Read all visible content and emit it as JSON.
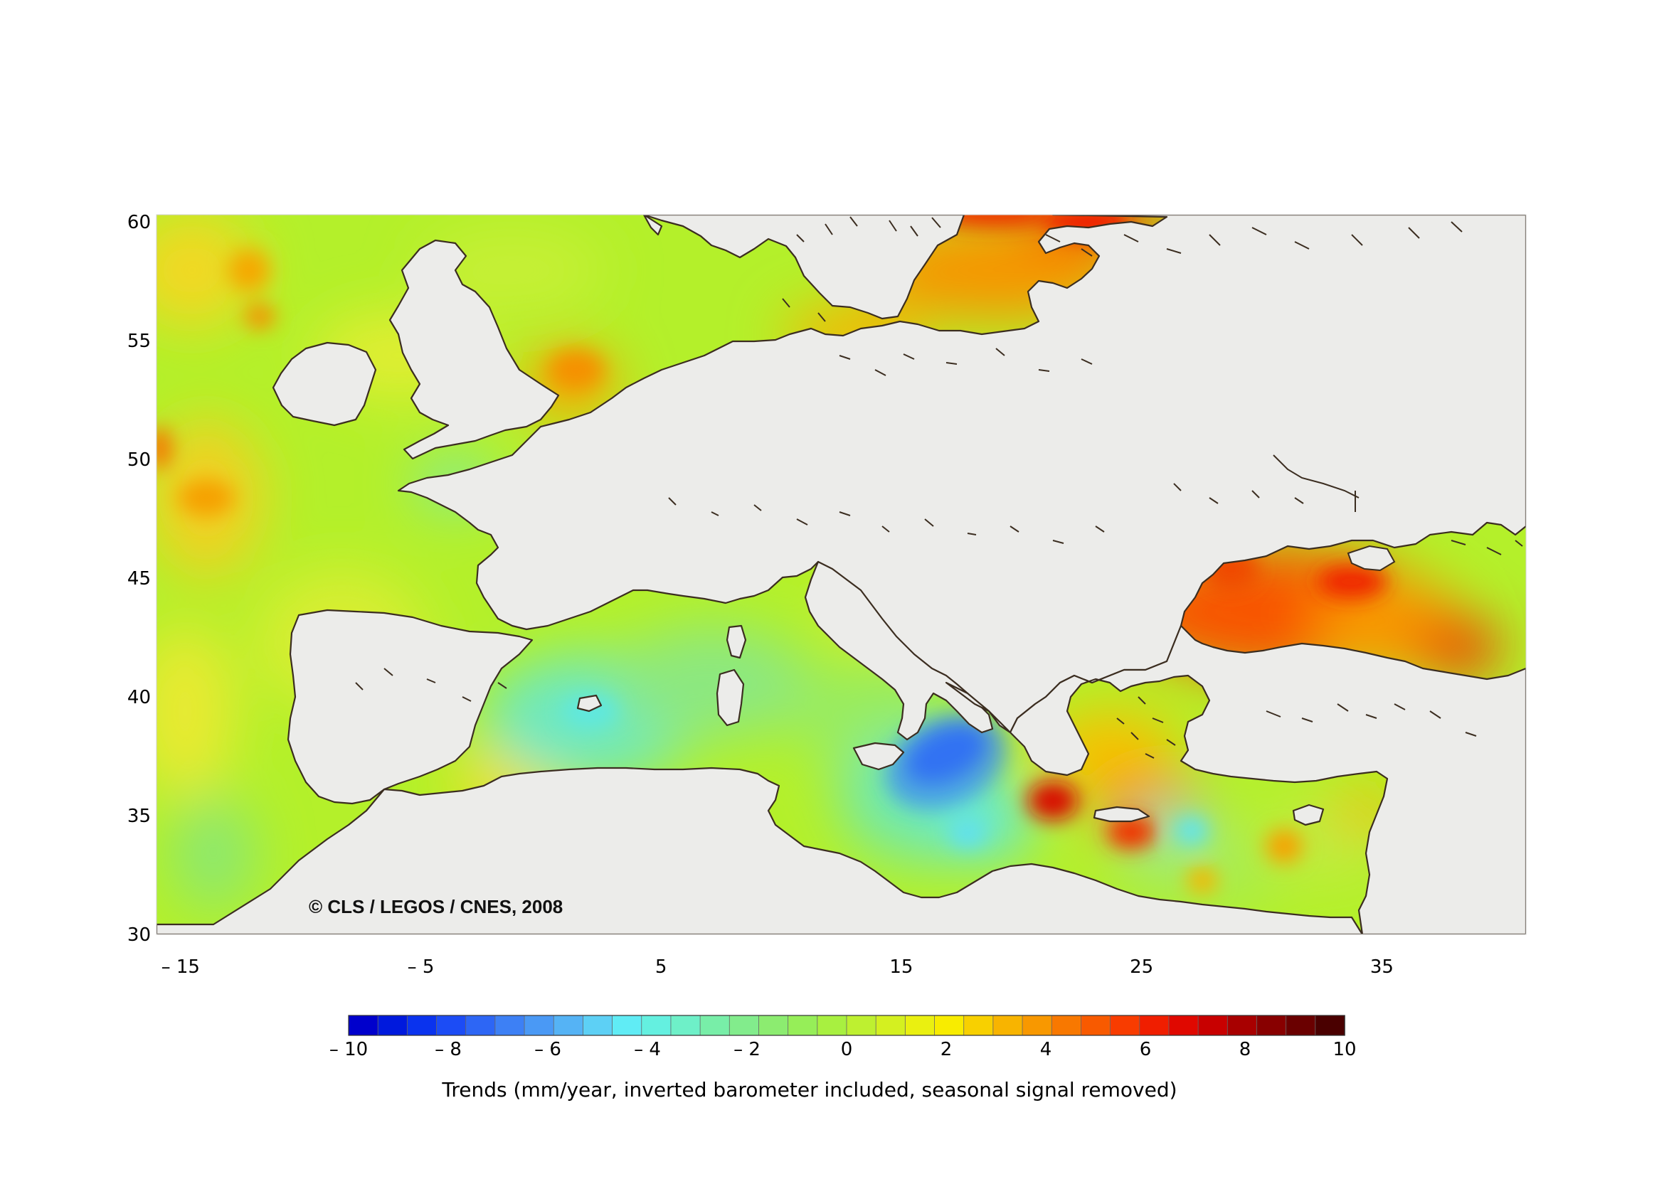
{
  "map": {
    "credit": "© CLS / LEGOS / CNES, 2008",
    "colors": {
      "land": "#ececea",
      "coast": "#3b2d20",
      "border": "#555555"
    },
    "lon_range": [
      -16,
      41
    ],
    "lat_range": [
      30,
      60.3
    ],
    "x_ticks": [
      {
        "value": -15,
        "label": "– 15"
      },
      {
        "value": -5,
        "label": "– 5"
      },
      {
        "value": 5,
        "label": "5"
      },
      {
        "value": 15,
        "label": "15"
      },
      {
        "value": 25,
        "label": "25"
      },
      {
        "value": 35,
        "label": "35"
      }
    ],
    "y_ticks": [
      {
        "value": 60,
        "label": "60"
      },
      {
        "value": 55,
        "label": "55"
      },
      {
        "value": 50,
        "label": "50"
      },
      {
        "value": 45,
        "label": "45"
      },
      {
        "value": 40,
        "label": "40"
      },
      {
        "value": 35,
        "label": "35"
      },
      {
        "value": 30,
        "label": "30"
      }
    ],
    "trend_hotspots": [
      {
        "lon": 17.5,
        "lat": 37.5,
        "value": -8
      },
      {
        "lon": 22.2,
        "lat": 35.4,
        "value": 8
      },
      {
        "lon": 25.5,
        "lat": 34.3,
        "value": 6
      },
      {
        "lon": 21.5,
        "lat": 58.5,
        "value": 5
      },
      {
        "lon": 35.0,
        "lat": 43.0,
        "value": 6
      },
      {
        "lon": 3.5,
        "lat": 53.5,
        "value": 4
      },
      {
        "lon": -13.0,
        "lat": 58.0,
        "value": 4
      },
      {
        "lon": 3.0,
        "lat": 38.8,
        "value": -2
      },
      {
        "lon": 27.0,
        "lat": 34.2,
        "value": -1
      },
      {
        "lon": -13.0,
        "lat": 48.5,
        "value": 4
      }
    ]
  },
  "colorbar": {
    "title": "Trends (mm/year, inverted barometer included, seasonal signal removed)",
    "min": -10,
    "max": 10,
    "colors": [
      "#0000cc",
      "#0019dd",
      "#0a33ee",
      "#1c4cf5",
      "#2d66f5",
      "#3d80f5",
      "#4a99f5",
      "#55b3f5",
      "#5dd0f5",
      "#60ecf5",
      "#64f0e0",
      "#6ef0c8",
      "#78eea8",
      "#82ec8c",
      "#8cec70",
      "#96ee58",
      "#a8f040",
      "#bef030",
      "#d4f020",
      "#eaf010",
      "#f8ec00",
      "#f8d000",
      "#f8b400",
      "#f89800",
      "#f87800",
      "#f85a00",
      "#f83c00",
      "#f01e00",
      "#e00800",
      "#c80000",
      "#a80000",
      "#880000",
      "#6a0000",
      "#4a0000"
    ],
    "ticks": [
      {
        "value": -10,
        "label": "– 10"
      },
      {
        "value": -8,
        "label": "– 8"
      },
      {
        "value": -6,
        "label": "– 6"
      },
      {
        "value": -4,
        "label": "– 4"
      },
      {
        "value": -2,
        "label": "– 2"
      },
      {
        "value": 0,
        "label": "0"
      },
      {
        "value": 2,
        "label": "2"
      },
      {
        "value": 4,
        "label": "4"
      },
      {
        "value": 6,
        "label": "6"
      },
      {
        "value": 8,
        "label": "8"
      },
      {
        "value": 10,
        "label": "10"
      }
    ]
  }
}
